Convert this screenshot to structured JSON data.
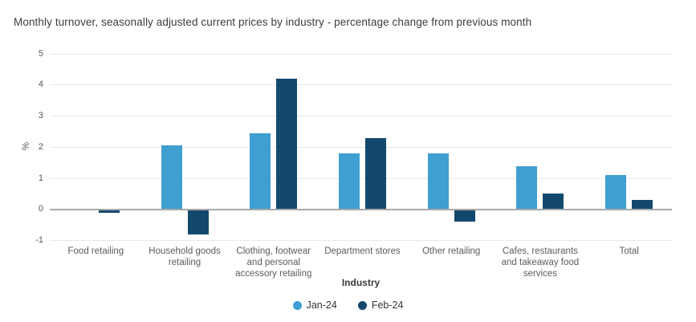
{
  "chart_data": {
    "type": "bar",
    "title": "Monthly turnover, seasonally adjusted current prices by industry - percentage change from previous month",
    "xlabel": "Industry",
    "ylabel": "%",
    "ylim": [
      -1,
      5
    ],
    "yticks": [
      5,
      4,
      3,
      2,
      1,
      0,
      -1
    ],
    "grid": "horizontal",
    "legend_position": "bottom",
    "categories": [
      "Food retailing",
      "Household goods retailing",
      "Clothing, footwear and personal accessory retailing",
      "Department stores",
      "Other retailing",
      "Cafes, restaurants and takeaway food services",
      "Total"
    ],
    "category_lines": [
      [
        "Food retailing"
      ],
      [
        "Household goods",
        "retailing"
      ],
      [
        "Clothing, footwear",
        "and personal",
        "accessory retailing"
      ],
      [
        "Department stores"
      ],
      [
        "Other retailing"
      ],
      [
        "Cafes, restaurants",
        "and takeaway food",
        "services"
      ],
      [
        "Total"
      ]
    ],
    "series": [
      {
        "name": "Jan-24",
        "color": "#3F9FD1",
        "values": [
          0.0,
          2.05,
          2.45,
          1.8,
          1.8,
          1.4,
          1.1
        ]
      },
      {
        "name": "Feb-24",
        "color": "#14496E",
        "values": [
          -0.1,
          -0.8,
          4.2,
          2.3,
          -0.4,
          0.5,
          0.3
        ]
      }
    ],
    "colors": {
      "grid": "#e8e8e8",
      "zero_line": "#a9a9a9",
      "jan": "#3F9FD1",
      "feb": "#14496E"
    }
  }
}
